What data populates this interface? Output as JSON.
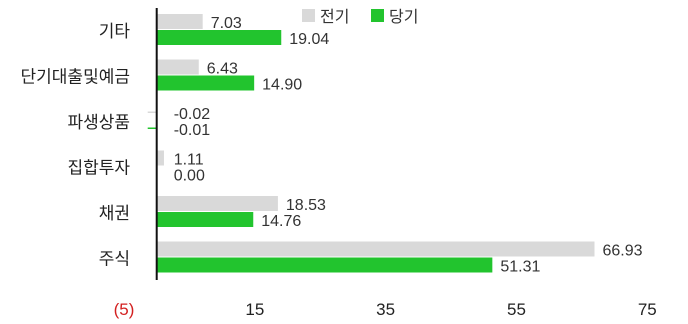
{
  "chart_data": {
    "type": "bar",
    "orientation": "horizontal",
    "categories": [
      "기타",
      "단기대출및예금",
      "파생상품",
      "집합투자",
      "채권",
      "주식"
    ],
    "series": [
      {
        "name": "전기",
        "color": "#d9d9d9",
        "values": [
          7.03,
          6.43,
          -0.02,
          1.11,
          18.53,
          66.93
        ]
      },
      {
        "name": "당기",
        "color": "#22c42e",
        "values": [
          19.04,
          14.9,
          -0.01,
          0.0,
          14.76,
          51.31
        ]
      }
    ],
    "value_labels": [
      [
        "7.03",
        "6.43",
        "-0.02",
        "1.11",
        "18.53",
        "66.93"
      ],
      [
        "19.04",
        "14.90",
        "-0.01",
        "0.00",
        "14.76",
        "51.31"
      ]
    ],
    "xlim": [
      -5,
      80
    ],
    "x_ticks": [
      -5,
      15,
      35,
      55,
      75
    ],
    "x_tick_labels": [
      "(5)",
      "15",
      "35",
      "55",
      "75"
    ],
    "negative_tick_color": "#d32020",
    "grid": false,
    "legend_position": "top-right",
    "title": "",
    "xlabel": "",
    "ylabel": ""
  }
}
